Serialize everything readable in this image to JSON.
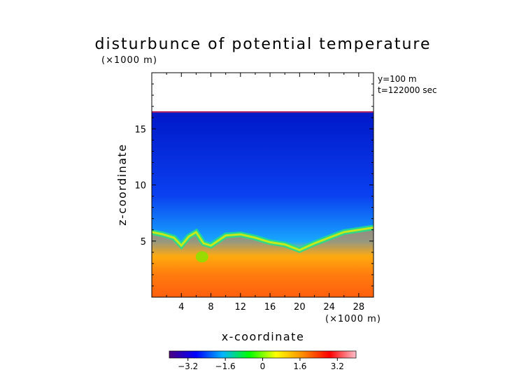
{
  "chart_data": {
    "type": "heatmap",
    "title": "disturbunce of potential temperature",
    "y_unit_note": "(×1000 m)",
    "x_unit_note": "(×1000 m)",
    "annotations": [
      "y=100 m",
      "t=122000 sec"
    ],
    "xlabel": "x-coordinate",
    "ylabel": "z-coordinate",
    "xlim": [
      0,
      30
    ],
    "ylim": [
      0,
      20
    ],
    "x_ticks": [
      4,
      8,
      12,
      16,
      20,
      24,
      28
    ],
    "x_tick_labels": [
      "4",
      "8",
      "12",
      "16",
      "20",
      "24",
      "28"
    ],
    "y_ticks": [
      5,
      10,
      15
    ],
    "y_tick_labels": [
      "5",
      "10",
      "15"
    ],
    "domain_top_z": 16.5,
    "colormap": [
      "#4b0082",
      "#0000ff",
      "#00b4ff",
      "#00ff00",
      "#ffff00",
      "#ff8c00",
      "#ff0000",
      "#ffc0cb"
    ],
    "colorbar": {
      "range": [
        -4,
        4
      ],
      "tick_values": [
        -3.2,
        -1.6,
        0,
        1.6,
        3.2
      ],
      "tick_labels": [
        "−3.2",
        "−1.6",
        "0",
        "1.6",
        "3.2"
      ]
    },
    "profile": {
      "description_x": [
        0,
        1.5,
        3,
        4,
        5,
        6,
        7,
        8,
        10,
        12,
        14,
        16,
        18,
        20,
        22,
        24,
        26,
        28,
        30
      ],
      "interface_z": [
        5.8,
        5.6,
        5.3,
        4.6,
        5.4,
        5.8,
        4.8,
        4.6,
        5.5,
        5.6,
        5.3,
        4.9,
        4.7,
        4.2,
        4.8,
        5.3,
        5.8,
        6.0,
        6.2
      ],
      "values_above": -2.6,
      "values_below": 2.2
    }
  }
}
